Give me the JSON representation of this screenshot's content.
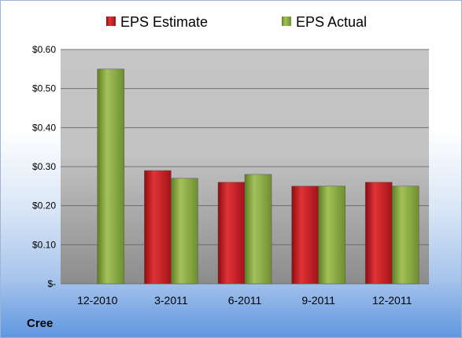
{
  "company": "Cree",
  "colors": {
    "estimate": "#c0171b",
    "actual": "#8aaa3f"
  },
  "chart_data": {
    "type": "bar",
    "categories": [
      "12-2010",
      "3-2011",
      "6-2011",
      "9-2011",
      "12-2011"
    ],
    "series": [
      {
        "name": "EPS Estimate",
        "values": [
          null,
          0.29,
          0.26,
          0.25,
          0.26
        ]
      },
      {
        "name": "EPS Actual",
        "values": [
          0.55,
          0.27,
          0.28,
          0.25,
          0.25
        ]
      }
    ],
    "yticks": [
      "$-",
      "$0.10",
      "$0.20",
      "$0.30",
      "$0.40",
      "$0.50",
      "$0.60"
    ],
    "ylim": [
      0,
      0.6
    ],
    "grid": true,
    "legend_position": "top"
  }
}
